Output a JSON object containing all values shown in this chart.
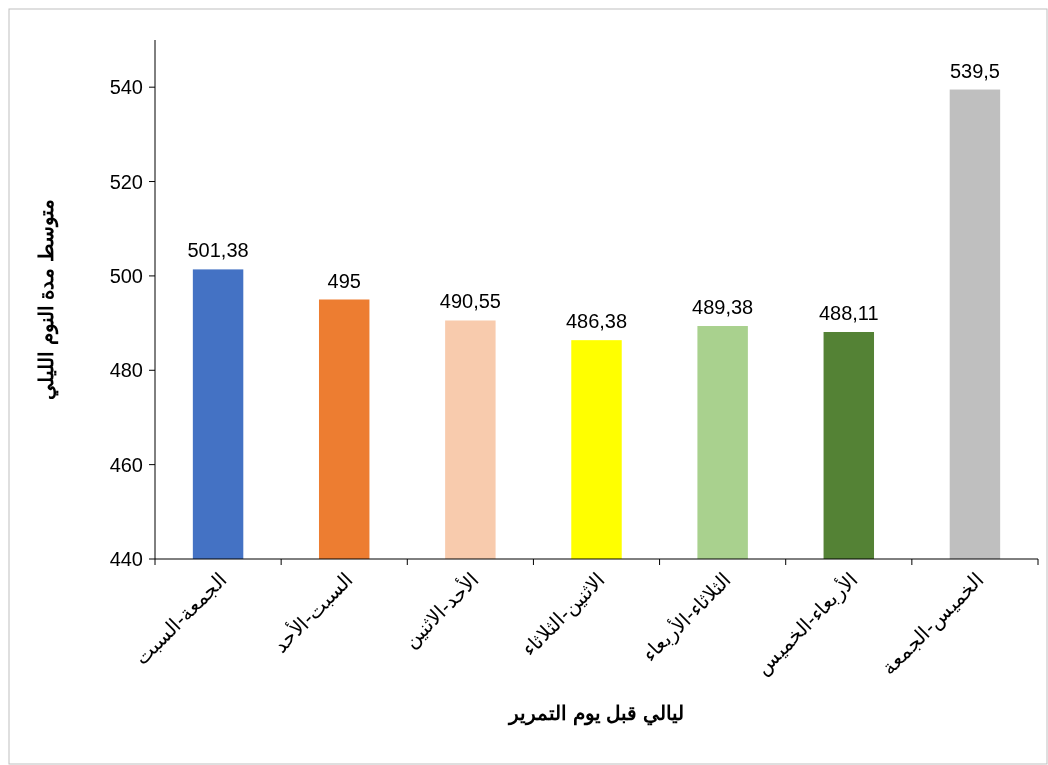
{
  "chart_data": {
    "type": "bar",
    "xlabel": "ليالي قبل يوم التمرير",
    "ylabel": "متوسط مدة النوم الليلي",
    "categories": [
      "الجمعة-السبت",
      "السبت-الأحد",
      "الأحد-الاثنين",
      "الاثنين-الثلاثاء",
      "الثلاثاء-الأربعاء",
      "الأربعاء-الخميس",
      "الخميس-الجمعة"
    ],
    "values": [
      501.38,
      495,
      490.55,
      486.38,
      489.38,
      488.11,
      539.5
    ],
    "colors": [
      "#4472c4",
      "#ed7d31",
      "#f8cbad",
      "#ffff00",
      "#a9d18e",
      "#548235",
      "#bfbfbf"
    ],
    "value_labels": [
      "501,38",
      "495",
      "490,55",
      "486,38",
      "489,38",
      "488,11",
      "539,5"
    ],
    "ylim": [
      440,
      550
    ],
    "yticks": [
      440,
      460,
      480,
      500,
      520,
      540
    ],
    "grid": false
  }
}
